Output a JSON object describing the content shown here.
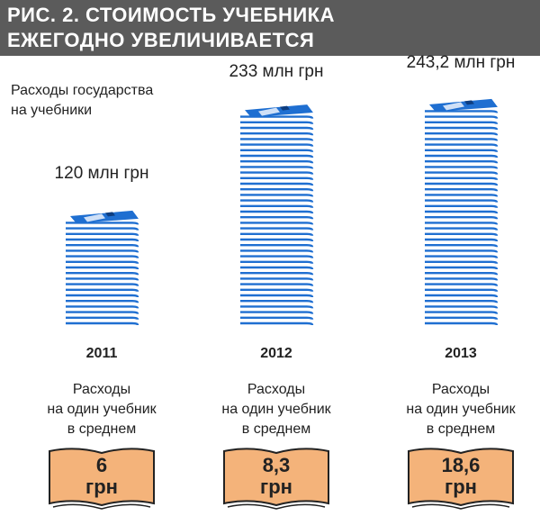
{
  "header": {
    "title_line1": "РИС. 2. СТОИМОСТЬ УЧЕБНИКА",
    "title_line2": "ЕЖЕГОДНО УВЕЛИЧИВАЕТСЯ"
  },
  "annotation": {
    "line1": "Расходы государства",
    "line2": "на учебники"
  },
  "colors": {
    "header_bg": "#5b5b5b",
    "page_blue": "#1f6fd1",
    "page_white": "#ffffff",
    "book_fill": "#f4b37a",
    "book_stroke": "#222222"
  },
  "icons": [
    "book-stack-icon",
    "open-book-icon"
  ],
  "chart_data": {
    "type": "bar",
    "categories": [
      "2011",
      "2012",
      "2013"
    ],
    "series": [
      {
        "values": [
          120,
          233,
          243.2
        ]
      }
    ],
    "value_labels": [
      "120 млн грн",
      "233 млн грн",
      "243,2 млн грн"
    ],
    "per_book_label": [
      "Расходы",
      "на один учебник",
      "в среднем"
    ],
    "per_book_values": [
      6,
      8.3,
      18.6
    ],
    "per_book_value_labels": [
      "6",
      "8,3",
      "18,6"
    ],
    "per_book_unit": "грн"
  }
}
